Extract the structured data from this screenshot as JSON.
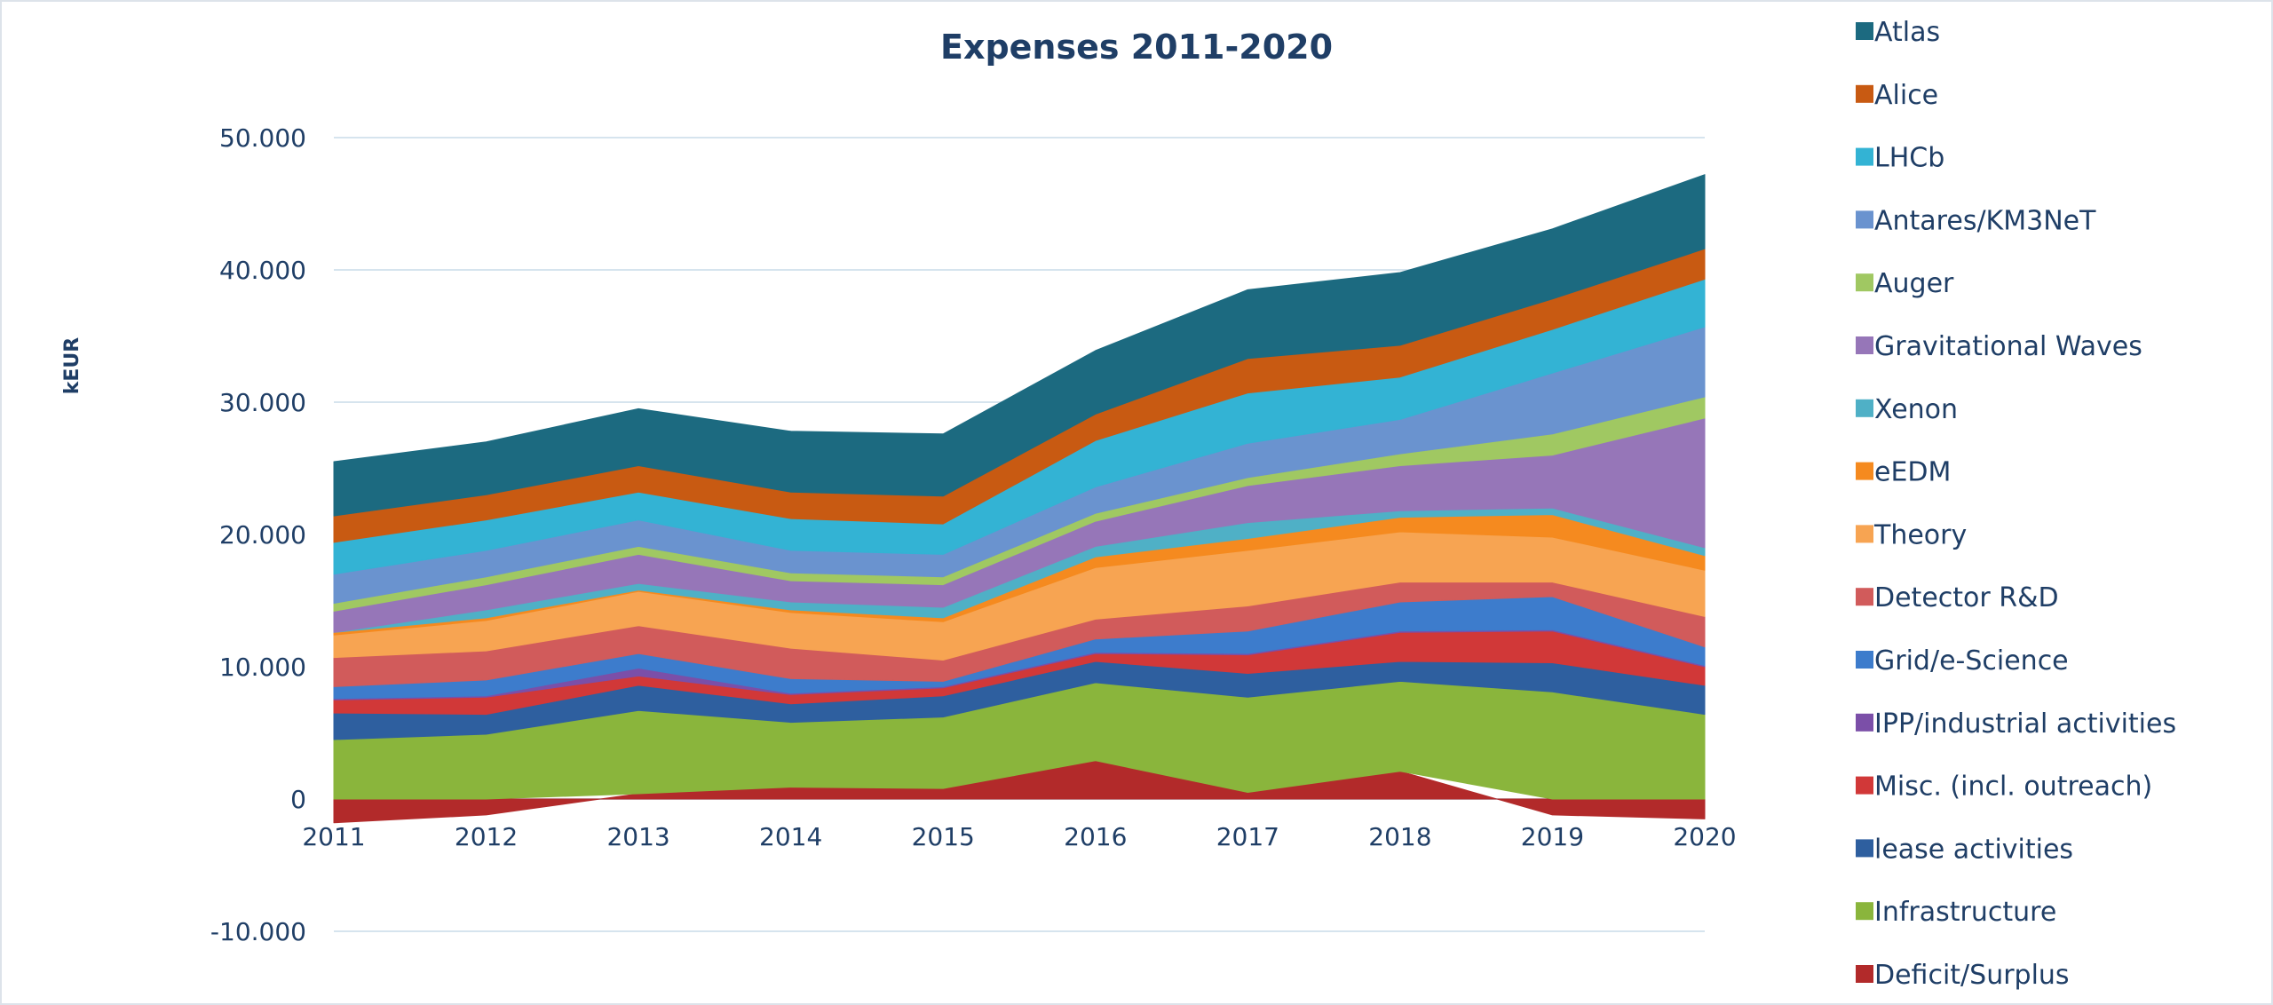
{
  "colors": {
    "text": "#1f3e66",
    "gridline": "#d6e4ee",
    "background": "#ffffff"
  },
  "chart_data": {
    "type": "area",
    "stacked": true,
    "title": "Expenses 2011-2020",
    "ylabel": "kEUR",
    "xlabel": "",
    "x": [
      "2011",
      "2012",
      "2013",
      "2014",
      "2015",
      "2016",
      "2017",
      "2018",
      "2019",
      "2020"
    ],
    "ylim": [
      -10000,
      50000
    ],
    "yticks": [
      -10000,
      0,
      10000,
      20000,
      30000,
      40000,
      50000
    ],
    "ytick_labels": [
      "-10.000",
      "0",
      "10.000",
      "20.000",
      "30.000",
      "40.000",
      "50.000"
    ],
    "grid": true,
    "legend_position": "right",
    "series": [
      {
        "name": "Deficit/Surplus",
        "color": "#b22a2a",
        "values": [
          -1800,
          -1200,
          400,
          900,
          800,
          2900,
          500,
          2100,
          -1200,
          -1500
        ]
      },
      {
        "name": "Infrastructure",
        "color": "#8ab53c",
        "values": [
          4500,
          4900,
          6300,
          4900,
          5400,
          5900,
          7200,
          6800,
          8100,
          6400
        ]
      },
      {
        "name": "lease activities",
        "color": "#2e5f9f",
        "values": [
          2000,
          1500,
          1900,
          1400,
          1600,
          1600,
          1800,
          1500,
          2200,
          2200
        ]
      },
      {
        "name": "Misc. (incl. outreach)",
        "color": "#d13838",
        "values": [
          1000,
          1300,
          700,
          700,
          600,
          600,
          1400,
          2200,
          2400,
          1400
        ]
      },
      {
        "name": "IPP/industrial activities",
        "color": "#7b4fa8",
        "values": [
          100,
          100,
          600,
          100,
          100,
          100,
          100,
          100,
          100,
          100
        ]
      },
      {
        "name": "Grid/e-Science",
        "color": "#3d7ccc",
        "values": [
          900,
          1200,
          1100,
          1100,
          400,
          1000,
          1700,
          2200,
          2500,
          1400
        ]
      },
      {
        "name": "Detector R&D",
        "color": "#d15b5b",
        "values": [
          2200,
          2200,
          2100,
          2300,
          1600,
          1500,
          1900,
          1500,
          1100,
          2300
        ]
      },
      {
        "name": "Theory",
        "color": "#f7a452",
        "values": [
          1700,
          2300,
          2600,
          2700,
          2900,
          3900,
          4200,
          3800,
          3400,
          3500
        ]
      },
      {
        "name": "eEDM",
        "color": "#f58a1f",
        "values": [
          200,
          200,
          100,
          200,
          300,
          800,
          900,
          1100,
          1700,
          1100
        ]
      },
      {
        "name": "Xenon",
        "color": "#4fb0c6",
        "values": [
          0,
          600,
          500,
          600,
          800,
          800,
          1200,
          500,
          500,
          600
        ]
      },
      {
        "name": "Gravitational Waves",
        "color": "#9676b8",
        "values": [
          1600,
          1900,
          2200,
          1600,
          1700,
          1900,
          2800,
          3400,
          4000,
          9800
        ]
      },
      {
        "name": "Auger",
        "color": "#a0c862",
        "values": [
          600,
          600,
          600,
          600,
          600,
          600,
          600,
          900,
          1600,
          1600
        ]
      },
      {
        "name": "Antares/KM3NeT",
        "color": "#6a93cf",
        "values": [
          2200,
          2000,
          2000,
          1700,
          1700,
          2000,
          2600,
          2600,
          4600,
          5300
        ]
      },
      {
        "name": "LHCb",
        "color": "#33b3d4",
        "values": [
          2400,
          2300,
          2100,
          2400,
          2300,
          3500,
          3800,
          3200,
          3300,
          3600
        ]
      },
      {
        "name": "Alice",
        "color": "#c85a12",
        "values": [
          2000,
          1900,
          2000,
          2000,
          2100,
          2000,
          2600,
          2400,
          2300,
          2300
        ]
      },
      {
        "name": "Atlas",
        "color": "#1c6a80",
        "values": [
          4100,
          4000,
          4300,
          4600,
          4700,
          4800,
          5200,
          5500,
          5300,
          5600
        ]
      }
    ]
  }
}
